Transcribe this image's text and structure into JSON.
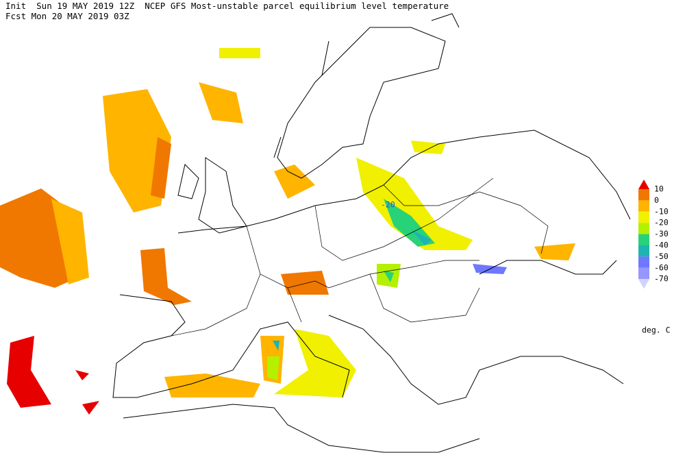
{
  "header": {
    "line1": "Init  Sun 19 MAY 2019 12Z  NCEP GFS Most-unstable parcel equilibrium level temperature",
    "line2": "Fcst Mon 20 MAY 2019 03Z"
  },
  "colorbar": {
    "levels": [
      10,
      0,
      -10,
      -20,
      -30,
      -40,
      -50,
      -60,
      -70
    ],
    "colors": [
      "#e60000",
      "#f07800",
      "#ffb400",
      "#f0f000",
      "#b4f000",
      "#28d278",
      "#1eb4b4",
      "#6e78ff",
      "#9696ff",
      "#d2d2ff"
    ],
    "units": "deg. C"
  },
  "map": {
    "contour_label": "-20"
  }
}
